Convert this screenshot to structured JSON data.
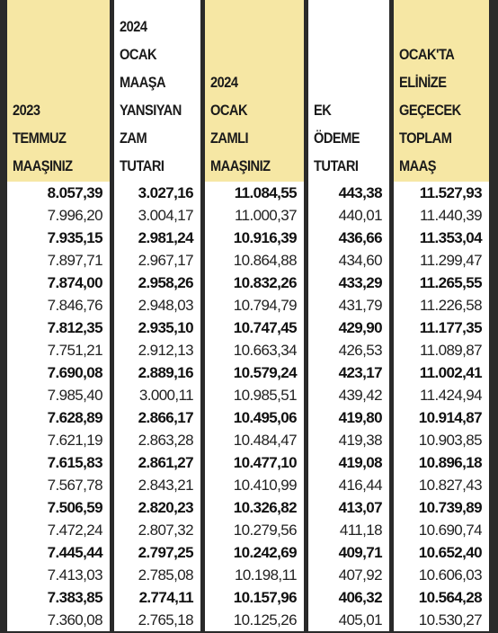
{
  "table": {
    "headers": [
      [
        "2023",
        "TEMMUZ",
        "MAAŞINIZ"
      ],
      [
        "2024",
        "OCAK",
        "MAAŞA",
        "YANSIYAN",
        "ZAM",
        "TUTARI"
      ],
      [
        "2024",
        "OCAK",
        "ZAMLI",
        "MAAŞINIZ"
      ],
      [
        "EK",
        "ÖDEME",
        "TUTARI"
      ],
      [
        "OCAK'TA",
        "ELİNİZE",
        "GEÇECEK",
        "TOPLAM",
        "MAAŞ"
      ]
    ],
    "rows": [
      [
        "8.057,39",
        "3.027,16",
        "11.084,55",
        "443,38",
        "11.527,93"
      ],
      [
        "7.996,20",
        "3.004,17",
        "11.000,37",
        "440,01",
        "11.440,39"
      ],
      [
        "7.935,15",
        "2.981,24",
        "10.916,39",
        "436,66",
        "11.353,04"
      ],
      [
        "7.897,71",
        "2.967,17",
        "10.864,88",
        "434,60",
        "11.299,47"
      ],
      [
        "7.874,00",
        "2.958,26",
        "10.832,26",
        "433,29",
        "11.265,55"
      ],
      [
        "7.846,76",
        "2.948,03",
        "10.794,79",
        "431,79",
        "11.226,58"
      ],
      [
        "7.812,35",
        "2.935,10",
        "10.747,45",
        "429,90",
        "11.177,35"
      ],
      [
        "7.751,21",
        "2.912,13",
        "10.663,34",
        "426,53",
        "11.089,87"
      ],
      [
        "7.690,08",
        "2.889,16",
        "10.579,24",
        "423,17",
        "11.002,41"
      ],
      [
        "7.985,40",
        "3.000,11",
        "10.985,51",
        "439,42",
        "11.424,94"
      ],
      [
        "7.628,89",
        "2.866,17",
        "10.495,06",
        "419,80",
        "10.914,87"
      ],
      [
        "7.621,19",
        "2.863,28",
        "10.484,47",
        "419,38",
        "10.903,85"
      ],
      [
        "7.615,83",
        "2.861,27",
        "10.477,10",
        "419,08",
        "10.896,18"
      ],
      [
        "7.567,78",
        "2.843,21",
        "10.410,99",
        "416,44",
        "10.827,43"
      ],
      [
        "7.506,59",
        "2.820,23",
        "10.326,82",
        "413,07",
        "10.739,89"
      ],
      [
        "7.472,24",
        "2.807,32",
        "10.279,56",
        "411,18",
        "10.690,74"
      ],
      [
        "7.445,44",
        "2.797,25",
        "10.242,69",
        "409,71",
        "10.652,40"
      ],
      [
        "7.413,03",
        "2.785,08",
        "10.198,11",
        "407,92",
        "10.606,03"
      ],
      [
        "7.383,85",
        "2.774,11",
        "10.157,96",
        "406,32",
        "10.564,28"
      ],
      [
        "7.360,08",
        "2.765,18",
        "10.125,26",
        "405,01",
        "10.530,27"
      ]
    ]
  }
}
